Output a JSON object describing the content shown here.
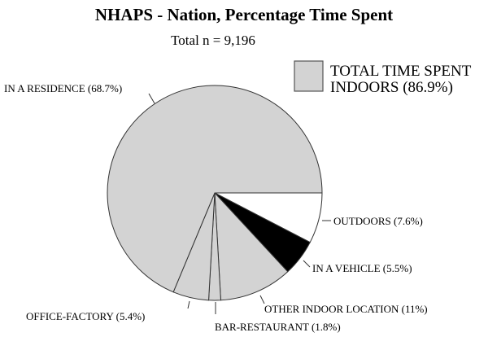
{
  "chart_data": {
    "type": "pie",
    "title": "NHAPS - Nation, Percentage Time Spent",
    "subtitle": "Total n = 9,196",
    "slices": [
      {
        "label": "OUTDOORS (7.6%)",
        "value": 7.6,
        "color": "#ffffff"
      },
      {
        "label": "IN A VEHICLE (5.5%)",
        "value": 5.5,
        "color": "#000000"
      },
      {
        "label": "OTHER INDOOR LOCATION (11%)",
        "value": 11,
        "color": "#d3d3d3"
      },
      {
        "label": "BAR-RESTAURANT (1.8%)",
        "value": 1.8,
        "color": "#d3d3d3"
      },
      {
        "label": "OFFICE-FACTORY (5.4%)",
        "value": 5.4,
        "color": "#d3d3d3"
      },
      {
        "label": "IN A RESIDENCE (68.7%)",
        "value": 68.7,
        "color": "#d3d3d3"
      }
    ],
    "legend": {
      "lines": [
        "TOTAL TIME SPENT",
        "INDOORS (86.9%)"
      ],
      "color": "#d3d3d3",
      "placement": "top-right"
    }
  }
}
